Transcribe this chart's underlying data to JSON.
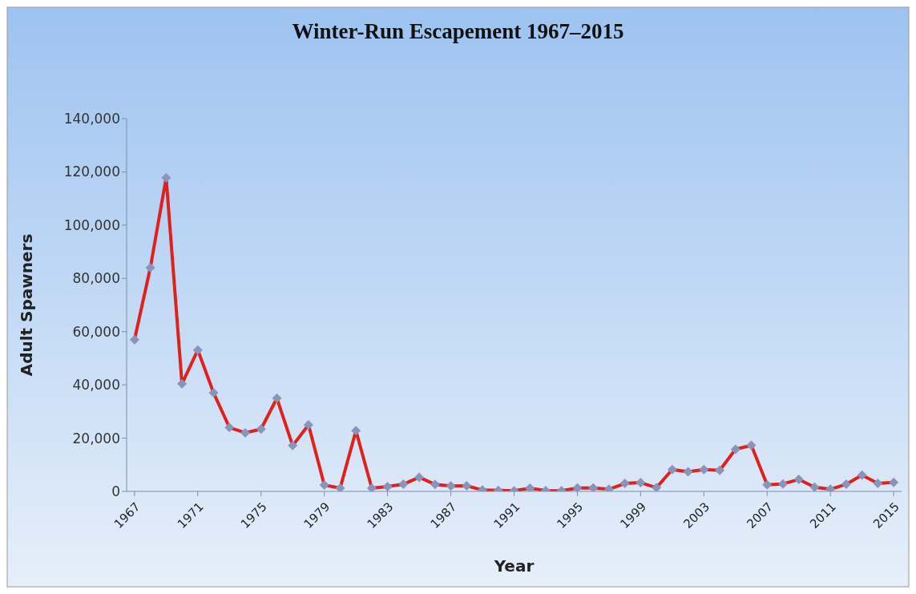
{
  "chart_data": {
    "type": "line",
    "title": "Winter-Run Escapement 1967–2015",
    "xlabel": "Year",
    "ylabel": "Adult Spawners",
    "x": [
      1967,
      1968,
      1969,
      1970,
      1971,
      1972,
      1973,
      1974,
      1975,
      1976,
      1977,
      1978,
      1979,
      1980,
      1981,
      1982,
      1983,
      1984,
      1985,
      1986,
      1987,
      1988,
      1989,
      1990,
      1991,
      1992,
      1993,
      1994,
      1995,
      1996,
      1997,
      1998,
      1999,
      2000,
      2001,
      2002,
      2003,
      2004,
      2005,
      2006,
      2007,
      2008,
      2009,
      2010,
      2011,
      2012,
      2013,
      2014,
      2015
    ],
    "series": [
      {
        "color": "#e0201c",
        "values": [
          57000,
          84000,
          117800,
          40400,
          53100,
          37000,
          24000,
          22000,
          23400,
          35000,
          17200,
          25000,
          2400,
          1200,
          22800,
          1200,
          1800,
          2700,
          5300,
          2600,
          2000,
          2100,
          500,
          400,
          200,
          1200,
          300,
          200,
          1300,
          1300,
          800,
          3000,
          3300,
          1400,
          8200,
          7400,
          8200,
          7900,
          15800,
          17300,
          2500,
          2800,
          4500,
          1600,
          800,
          2700,
          6100,
          3000,
          3400
        ]
      }
    ],
    "xlim": [
      1966.5,
      2015.5
    ],
    "xticks": [
      1967,
      1971,
      1975,
      1979,
      1983,
      1987,
      1991,
      1995,
      1999,
      2003,
      2007,
      2011,
      2015
    ],
    "ylim": [
      0,
      140000
    ],
    "yticks": [
      0,
      {
        "value": 20000,
        "label": "20,000"
      },
      {
        "value": 40000,
        "label": "40,000"
      },
      {
        "value": 60000,
        "label": "60,000"
      },
      {
        "value": 80000,
        "label": "80,000"
      },
      {
        "value": 100000,
        "label": "100,000"
      },
      {
        "value": 120000,
        "label": "120,000"
      },
      {
        "value": 140000,
        "label": "140,000"
      }
    ],
    "marker": "diamond",
    "line_style": "solid",
    "grid": false,
    "legend": false
  }
}
